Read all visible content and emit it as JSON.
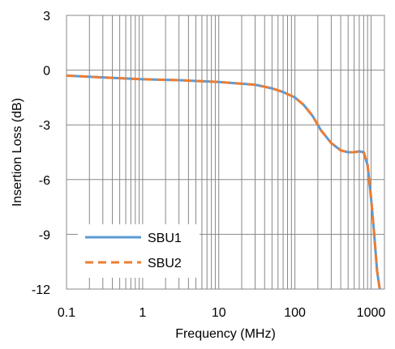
{
  "chart_data": {
    "type": "line",
    "title": "",
    "xlabel": "Frequency  (MHz)",
    "ylabel": "Insertion Loss (dB)",
    "x_scale": "log",
    "xlim": [
      0.1,
      1500
    ],
    "ylim": [
      -12,
      3
    ],
    "grid": true,
    "legend_position": "bottom-left",
    "x_ticks": [
      0.1,
      1,
      10,
      100,
      1000
    ],
    "x_tick_labels": [
      "0.1",
      "1",
      "10",
      "100",
      "1000"
    ],
    "y_ticks": [
      3,
      0,
      -3,
      -6,
      -9,
      -12
    ],
    "y_tick_labels": [
      "3",
      "0",
      "-3",
      "-6",
      "-9",
      "-12"
    ],
    "series": [
      {
        "name": "SBU1",
        "color": "#5B9BD5",
        "style": "solid",
        "x": [
          0.1,
          0.3,
          1,
          3,
          10,
          30,
          50,
          70,
          100,
          130,
          170,
          220,
          300,
          400,
          500,
          600,
          700,
          800,
          900,
          1000,
          1100,
          1200,
          1300
        ],
        "y": [
          -0.3,
          -0.4,
          -0.5,
          -0.55,
          -0.65,
          -0.8,
          -1.0,
          -1.2,
          -1.5,
          -1.9,
          -2.5,
          -3.3,
          -4.0,
          -4.4,
          -4.5,
          -4.5,
          -4.45,
          -4.5,
          -5.2,
          -7.0,
          -9.0,
          -11.0,
          -12.0
        ]
      },
      {
        "name": "SBU2",
        "color": "#ED7D31",
        "style": "dashed",
        "x": [
          0.1,
          0.3,
          1,
          3,
          10,
          30,
          50,
          70,
          100,
          130,
          170,
          220,
          300,
          400,
          500,
          600,
          700,
          800,
          900,
          1000,
          1100,
          1200,
          1300
        ],
        "y": [
          -0.3,
          -0.4,
          -0.5,
          -0.55,
          -0.65,
          -0.8,
          -1.0,
          -1.2,
          -1.5,
          -1.9,
          -2.5,
          -3.3,
          -4.0,
          -4.4,
          -4.5,
          -4.5,
          -4.45,
          -4.5,
          -5.2,
          -7.0,
          -9.0,
          -11.0,
          -12.0
        ]
      }
    ]
  }
}
